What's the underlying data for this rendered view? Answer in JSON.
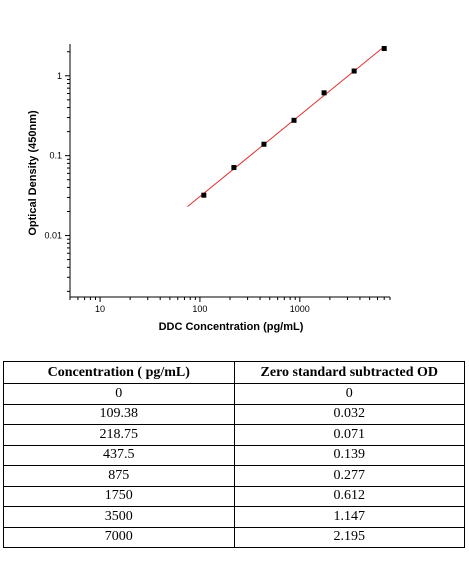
{
  "chart_data": {
    "type": "scatter",
    "title": "",
    "xlabel": "DDC Concentration (pg/mL)",
    "ylabel": "Optical Density (450nm)",
    "x_scale": "log",
    "y_scale": "log",
    "xlim": [
      5,
      8000
    ],
    "ylim": [
      0.0017,
      2.5
    ],
    "x_ticks": [
      "10",
      "100",
      "1000"
    ],
    "y_ticks": [
      "0.01",
      "0.1",
      "1"
    ],
    "grid": false,
    "series": [
      {
        "points": [
          {
            "x": 109.38,
            "y": 0.032
          },
          {
            "x": 218.75,
            "y": 0.071
          },
          {
            "x": 437.5,
            "y": 0.139
          },
          {
            "x": 875,
            "y": 0.277
          },
          {
            "x": 1750,
            "y": 0.612
          },
          {
            "x": 3500,
            "y": 1.147
          },
          {
            "x": 7000,
            "y": 2.195
          }
        ],
        "marker_color": "#000000"
      }
    ],
    "fit_line": {
      "x_range": [
        75,
        7000
      ],
      "color": "#e03030"
    }
  },
  "table": {
    "headers": [
      "Concentration ( pg/mL)",
      "Zero standard subtracted OD"
    ],
    "rows": [
      [
        "0",
        "0"
      ],
      [
        "109.38",
        "0.032"
      ],
      [
        "218.75",
        "0.071"
      ],
      [
        "437.5",
        "0.139"
      ],
      [
        "875",
        "0.277"
      ],
      [
        "1750",
        "0.612"
      ],
      [
        "3500",
        "1.147"
      ],
      [
        "7000",
        "2.195"
      ]
    ]
  }
}
